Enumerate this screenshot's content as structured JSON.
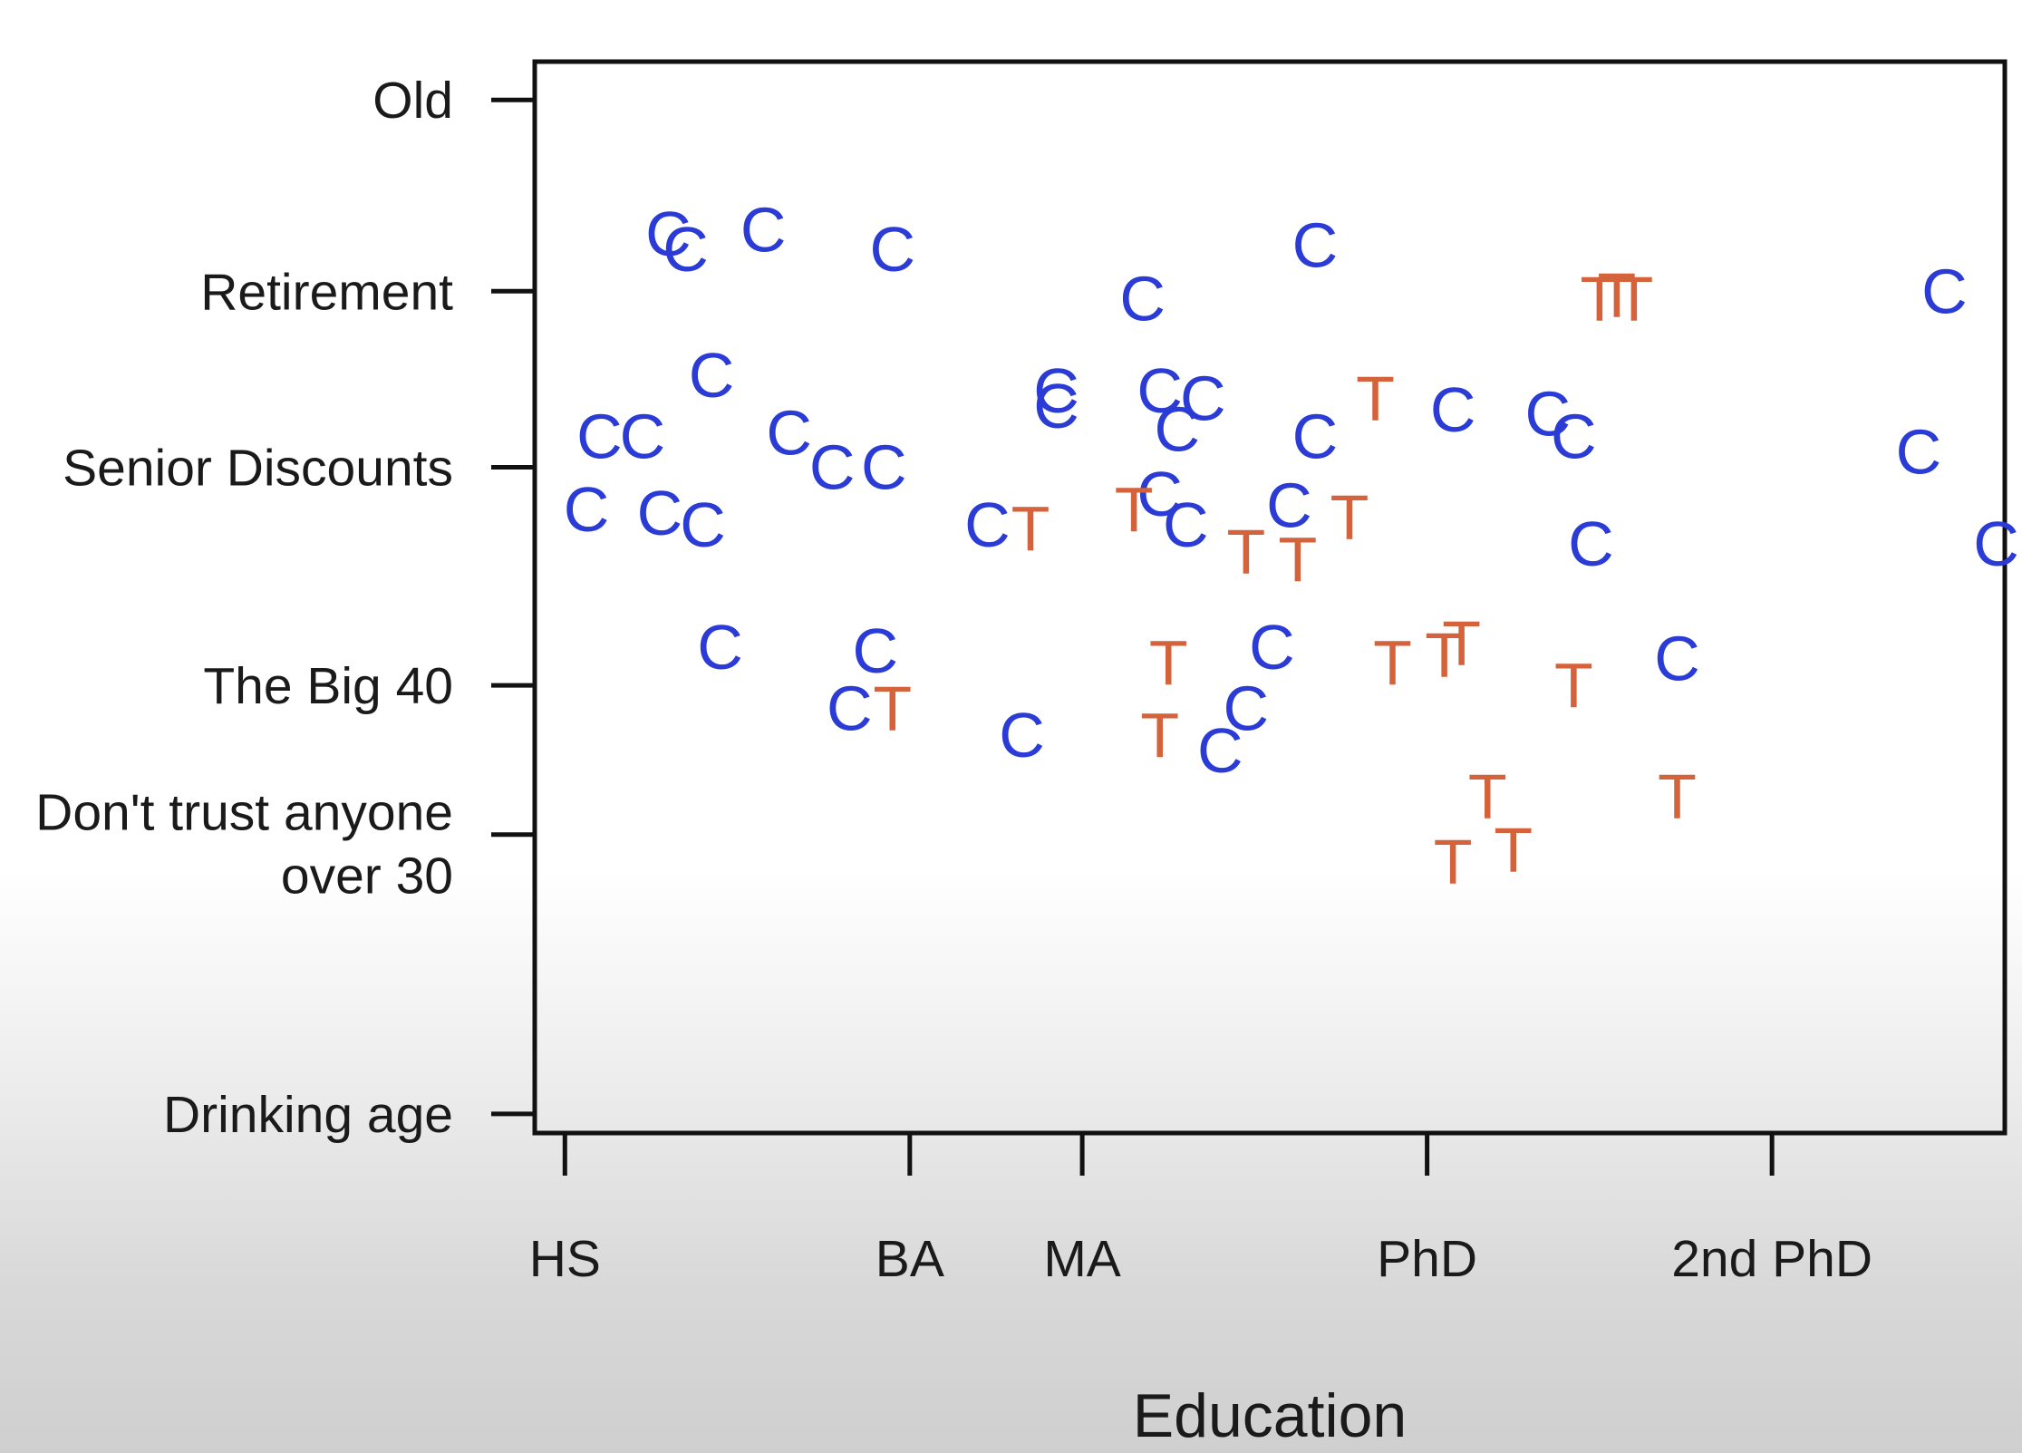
{
  "chart_data": {
    "type": "scatter",
    "title": "",
    "xlabel": "Education",
    "ylabel": "",
    "x_ticks": [
      {
        "label": "HS",
        "value": 0
      },
      {
        "label": "BA",
        "value": 4
      },
      {
        "label": "MA",
        "value": 6
      },
      {
        "label": "PhD",
        "value": 10
      },
      {
        "label": "2nd PhD",
        "value": 14
      }
    ],
    "y_ticks": [
      {
        "label": [
          "Old"
        ],
        "value": 65
      },
      {
        "label": [
          "Retirement"
        ],
        "value": 60
      },
      {
        "label": [
          "Senior Discounts"
        ],
        "value": 55.4
      },
      {
        "label": [
          "The Big 40"
        ],
        "value": 49.7
      },
      {
        "label": [
          "Don't trust anyone",
          "over 30"
        ],
        "value": 45.8
      },
      {
        "label": [
          "Drinking age"
        ],
        "value": 38.5
      }
    ],
    "xlim": [
      -0.35,
      16.7
    ],
    "ylim": [
      38.0,
      66.0
    ],
    "legend": "none",
    "grid": false,
    "colors": {
      "C": "#2b3bd6",
      "T": "#d4623a",
      "axis": "#111111"
    },
    "series": [
      {
        "name": "C",
        "marker": "C",
        "points": [
          [
            1.2,
            61.5
          ],
          [
            1.4,
            61.1
          ],
          [
            2.3,
            61.6
          ],
          [
            3.8,
            61.1
          ],
          [
            8.7,
            61.2
          ],
          [
            6.7,
            59.8
          ],
          [
            16.0,
            60.0
          ],
          [
            1.7,
            57.8
          ],
          [
            0.4,
            56.2
          ],
          [
            0.9,
            56.2
          ],
          [
            2.6,
            56.3
          ],
          [
            3.1,
            55.4
          ],
          [
            3.7,
            55.4
          ],
          [
            5.7,
            57.4
          ],
          [
            5.7,
            57.0
          ],
          [
            6.9,
            57.4
          ],
          [
            7.4,
            57.2
          ],
          [
            7.1,
            56.4
          ],
          [
            8.7,
            56.2
          ],
          [
            10.3,
            56.9
          ],
          [
            11.4,
            56.8
          ],
          [
            11.7,
            56.2
          ],
          [
            15.7,
            55.8
          ],
          [
            16.6,
            53.4
          ],
          [
            0.25,
            54.3
          ],
          [
            1.1,
            54.2
          ],
          [
            1.6,
            53.9
          ],
          [
            4.9,
            53.9
          ],
          [
            6.9,
            54.7
          ],
          [
            7.2,
            53.9
          ],
          [
            8.4,
            54.4
          ],
          [
            11.9,
            53.4
          ],
          [
            1.8,
            50.7
          ],
          [
            3.6,
            50.6
          ],
          [
            8.2,
            50.7
          ],
          [
            12.9,
            50.4
          ],
          [
            3.3,
            49.1
          ],
          [
            5.3,
            48.4
          ],
          [
            7.9,
            49.1
          ],
          [
            7.6,
            48.0
          ]
        ]
      },
      {
        "name": "T",
        "marker": "T",
        "points": [
          [
            9.4,
            57.2
          ],
          [
            12.0,
            59.8
          ],
          [
            12.2,
            59.9
          ],
          [
            12.4,
            59.8
          ],
          [
            5.4,
            53.8
          ],
          [
            6.6,
            54.3
          ],
          [
            9.1,
            54.1
          ],
          [
            7.9,
            53.2
          ],
          [
            8.5,
            53.0
          ],
          [
            7.0,
            50.3
          ],
          [
            9.6,
            50.3
          ],
          [
            10.2,
            50.5
          ],
          [
            10.4,
            50.8
          ],
          [
            11.7,
            49.7
          ],
          [
            3.8,
            49.1
          ],
          [
            6.9,
            48.4
          ],
          [
            10.7,
            46.8
          ],
          [
            12.9,
            46.8
          ],
          [
            10.3,
            45.1
          ],
          [
            11.0,
            45.4
          ]
        ]
      }
    ]
  }
}
